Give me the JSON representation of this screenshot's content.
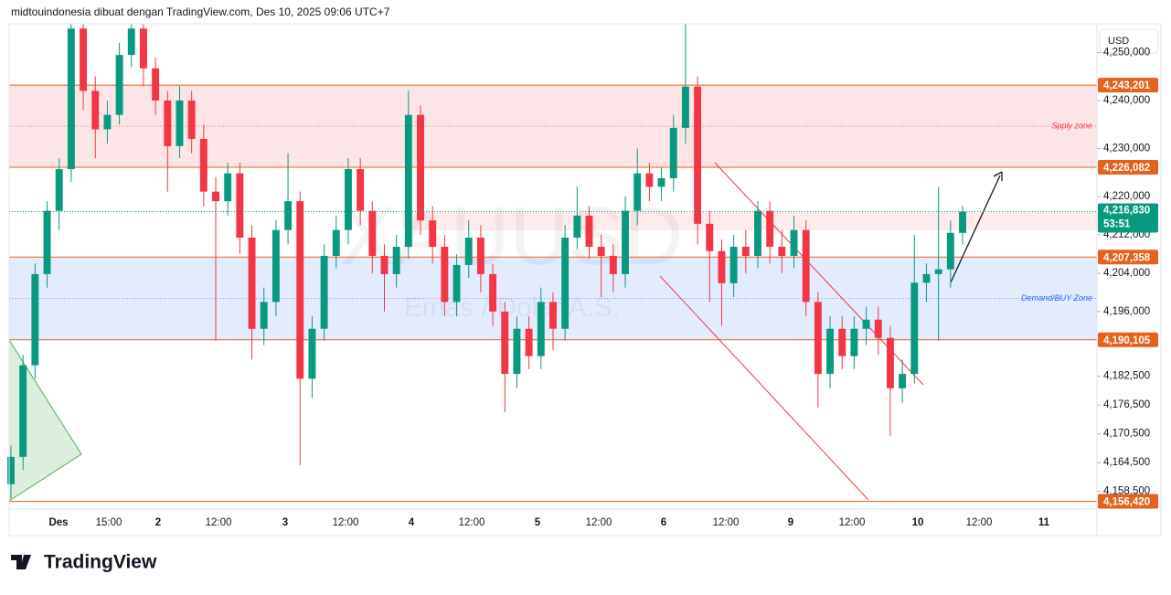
{
  "chart_data": {
    "type": "candlestick",
    "title": "midtouindonesia dibuat dengan TradingView.com, Des 10, 2025 09:06 UTC+7",
    "currency": "USD",
    "watermark": [
      "XAUUSD",
      "Emas / Dolar A.S."
    ],
    "brand": "TradingView",
    "up_color": "#089981",
    "down_color": "#f23645",
    "ylim": [
      4155,
      4256
    ],
    "yticks": [
      {
        "value": 4250,
        "label": "4,250,000"
      },
      {
        "value": 4240,
        "label": "4,240,000"
      },
      {
        "value": 4230,
        "label": "4,230,000"
      },
      {
        "value": 4220,
        "label": "4,220,000"
      },
      {
        "value": 4212,
        "label": "4,212,000"
      },
      {
        "value": 4204,
        "label": "4,204,000"
      },
      {
        "value": 4196,
        "label": "4,196,000"
      },
      {
        "value": 4190,
        "label": "4,190,000"
      },
      {
        "value": 4182.5,
        "label": "4,182,500"
      },
      {
        "value": 4176.5,
        "label": "4,176,500"
      },
      {
        "value": 4170.5,
        "label": "4,170,500"
      },
      {
        "value": 4164.5,
        "label": "4,164,500"
      },
      {
        "value": 4158.5,
        "label": "4,158,500"
      }
    ],
    "xlabels": [
      "Des",
      "15:00",
      "2",
      "12:00",
      "3",
      "12:00",
      "4",
      "12:00",
      "5",
      "12:00",
      "6",
      "12:00",
      "9",
      "12:00",
      "10",
      "12:00",
      "11"
    ],
    "zones": [
      {
        "label": "Spply zone",
        "from": 4226.082,
        "to": 4243.201,
        "color": "#f23645"
      },
      {
        "label": "Demand/BUY Zone",
        "from": 4190.105,
        "to": 4207.358,
        "color": "#2962ff"
      }
    ],
    "levels": [
      {
        "value": 4243.201,
        "label": "4,243,201"
      },
      {
        "value": 4226.082,
        "label": "4,226,082"
      },
      {
        "value": 4207.358,
        "label": "4,207,358"
      },
      {
        "value": 4190.105,
        "label": "4,190,105"
      },
      {
        "value": 4156.42,
        "label": "4,156,420"
      }
    ],
    "level_color": "#e4621b",
    "last_price": {
      "value": 4216.83,
      "label": "4,216,830",
      "countdown": "53:51"
    },
    "ohlc": [
      [
        4160,
        4168,
        4157,
        4165.7
      ],
      [
        4165.7,
        4187,
        4163,
        4184.8
      ],
      [
        4184.8,
        4206,
        4182,
        4203.8
      ],
      [
        4203.8,
        4219,
        4201,
        4217
      ],
      [
        4217,
        4228,
        4213,
        4225.7
      ],
      [
        4225.7,
        4256,
        4223,
        4255
      ],
      [
        4255,
        4256,
        4238,
        4242
      ],
      [
        4242,
        4245,
        4228,
        4234
      ],
      [
        4234,
        4240,
        4231,
        4237
      ],
      [
        4237,
        4252,
        4235,
        4249.5
      ],
      [
        4249.5,
        4256,
        4247,
        4255
      ],
      [
        4255,
        4256,
        4243,
        4246.7
      ],
      [
        4246.7,
        4249,
        4237,
        4240
      ],
      [
        4240,
        4242,
        4221,
        4230.5
      ],
      [
        4230.5,
        4243,
        4228,
        4240
      ],
      [
        4240,
        4242,
        4229,
        4232
      ],
      [
        4232,
        4235,
        4218,
        4221
      ],
      [
        4221,
        4224,
        4190,
        4219
      ],
      [
        4219,
        4227,
        4216,
        4224.8
      ],
      [
        4224.8,
        4227,
        4208,
        4211.4
      ],
      [
        4211.4,
        4214,
        4186,
        4192.4
      ],
      [
        4192.4,
        4201,
        4189,
        4198
      ],
      [
        4198,
        4215,
        4195,
        4213
      ],
      [
        4213,
        4229,
        4210,
        4219
      ],
      [
        4219,
        4221,
        4164,
        4182
      ],
      [
        4182,
        4195,
        4178,
        4192.4
      ],
      [
        4192.4,
        4210,
        4190,
        4207.6
      ],
      [
        4207.6,
        4216,
        4205,
        4213
      ],
      [
        4213,
        4228,
        4210,
        4225.7
      ],
      [
        4225.7,
        4228,
        4214,
        4217
      ],
      [
        4217,
        4219,
        4204,
        4207.6
      ],
      [
        4207.6,
        4210,
        4196,
        4203.8
      ],
      [
        4203.8,
        4212,
        4201,
        4209.5
      ],
      [
        4209.5,
        4242,
        4207,
        4237
      ],
      [
        4237,
        4239,
        4212,
        4215
      ],
      [
        4215,
        4218,
        4206,
        4209.5
      ],
      [
        4209.5,
        4212,
        4195,
        4198
      ],
      [
        4198,
        4208,
        4195,
        4205.7
      ],
      [
        4205.7,
        4215,
        4203,
        4211.4
      ],
      [
        4211.4,
        4214,
        4200,
        4203.8
      ],
      [
        4203.8,
        4206,
        4193,
        4196
      ],
      [
        4196,
        4198,
        4175,
        4183
      ],
      [
        4183,
        4195,
        4180,
        4192.4
      ],
      [
        4192.4,
        4195,
        4184,
        4186.7
      ],
      [
        4186.7,
        4201,
        4184,
        4198
      ],
      [
        4198,
        4200,
        4188,
        4192.4
      ],
      [
        4192.4,
        4214,
        4190,
        4211.4
      ],
      [
        4211.4,
        4222,
        4209,
        4216
      ],
      [
        4216,
        4218,
        4207,
        4209.5
      ],
      [
        4209.5,
        4212,
        4199,
        4207.6
      ],
      [
        4207.6,
        4210,
        4200,
        4203.8
      ],
      [
        4203.8,
        4220,
        4201,
        4217
      ],
      [
        4217,
        4230,
        4214,
        4224.8
      ],
      [
        4224.8,
        4227,
        4219,
        4222
      ],
      [
        4222,
        4226,
        4219,
        4223.8
      ],
      [
        4223.8,
        4237,
        4221,
        4234.3
      ],
      [
        4234.3,
        4256,
        4231,
        4242.9
      ],
      [
        4242.9,
        4245,
        4210,
        4214.3
      ],
      [
        4214.3,
        4217,
        4198,
        4208.6
      ],
      [
        4208.6,
        4211,
        4193,
        4201.9
      ],
      [
        4201.9,
        4212,
        4199,
        4209.5
      ],
      [
        4209.5,
        4213,
        4204,
        4207.6
      ],
      [
        4207.6,
        4219,
        4205,
        4217
      ],
      [
        4217,
        4219,
        4206,
        4209.5
      ],
      [
        4209.5,
        4213,
        4204,
        4207.6
      ],
      [
        4207.6,
        4216,
        4205,
        4213
      ],
      [
        4213,
        4215,
        4195,
        4198
      ],
      [
        4198,
        4200,
        4176,
        4183
      ],
      [
        4183,
        4195,
        4180,
        4192.4
      ],
      [
        4192.4,
        4195,
        4184,
        4186.7
      ],
      [
        4186.7,
        4195,
        4184,
        4192.4
      ],
      [
        4192.4,
        4197,
        4189,
        4194.3
      ],
      [
        4194.3,
        4197,
        4187,
        4190.5
      ],
      [
        4190.5,
        4193,
        4170,
        4180
      ],
      [
        4180,
        4186,
        4177,
        4183
      ],
      [
        4183,
        4212,
        4181,
        4202
      ],
      [
        4202,
        4206,
        4198,
        4203.8
      ],
      [
        4203.8,
        4222,
        4190,
        4204.8
      ],
      [
        4204.8,
        4215,
        4201,
        4212.4
      ],
      [
        4212.4,
        4218,
        4210,
        4216.8
      ]
    ]
  }
}
